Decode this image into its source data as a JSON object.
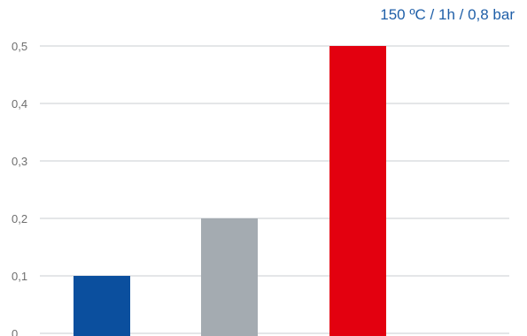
{
  "chart_data": {
    "type": "bar",
    "title": "150 ºC / 1h / 0,8 bar",
    "xlabel": "",
    "ylabel": "",
    "categories": [
      "",
      "",
      ""
    ],
    "values": [
      0.1,
      0.2,
      0.5
    ],
    "colors": [
      "#0b4f9e",
      "#a4abb1",
      "#e3000f"
    ],
    "ylim": [
      0,
      0.5
    ],
    "yticks": [
      0,
      0.1,
      0.2,
      0.3,
      0.4,
      0.5
    ],
    "ytick_labels": [
      "0",
      "0,1",
      "0,2",
      "0,3",
      "0,4",
      "0,5"
    ],
    "grid": true,
    "legend": false
  }
}
